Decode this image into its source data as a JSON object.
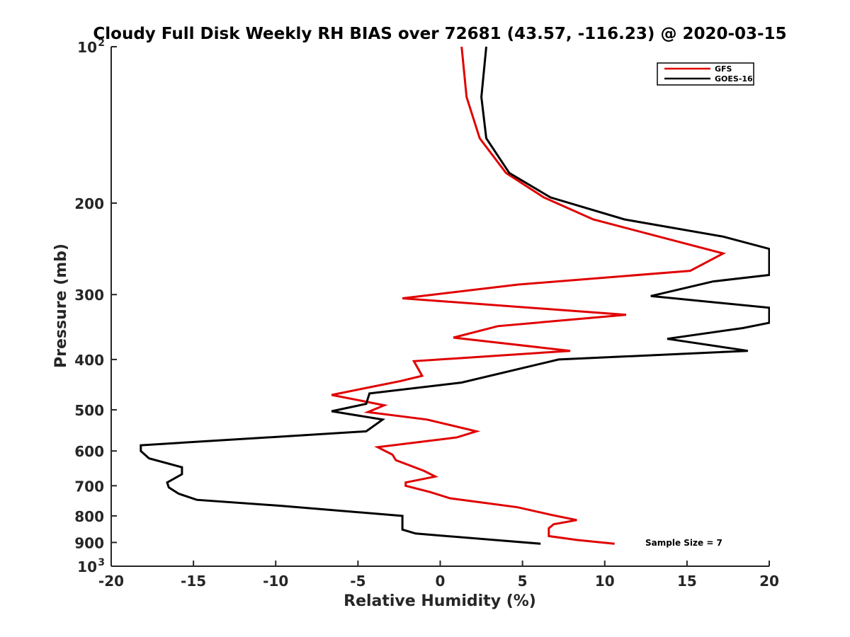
{
  "chart_data": {
    "type": "line",
    "title": "Cloudy Full Disk Weekly RH BIAS over 72681 (43.57, -116.23) @ 2020-03-15",
    "xlabel": "Relative Humidity (%)",
    "ylabel": "Pressure (mb)",
    "xlim": [
      -20,
      20
    ],
    "ylim": [
      100,
      1000
    ],
    "y_scale": "log",
    "y_reversed": true,
    "x_ticks": [
      "-20",
      "-15",
      "-10",
      "-5",
      "0",
      "5",
      "10",
      "15",
      "20"
    ],
    "y_ticks": [
      {
        "value": 100,
        "label": "10",
        "sup": "2"
      },
      {
        "value": 200,
        "label": "200"
      },
      {
        "value": 300,
        "label": "300"
      },
      {
        "value": 400,
        "label": "400"
      },
      {
        "value": 500,
        "label": "500"
      },
      {
        "value": 600,
        "label": "600"
      },
      {
        "value": 700,
        "label": "700"
      },
      {
        "value": 800,
        "label": "800"
      },
      {
        "value": 900,
        "label": "900"
      },
      {
        "value": 1000,
        "label": "10",
        "sup": "3"
      }
    ],
    "legend_position": "top-right",
    "grid": false,
    "annotation": "Sample Size = 7",
    "series": [
      {
        "name": "GFS",
        "color": "#e00000",
        "points": [
          [
            1.3,
            100
          ],
          [
            1.6,
            125
          ],
          [
            2.4,
            150
          ],
          [
            4.0,
            175
          ],
          [
            6.3,
            195
          ],
          [
            9.3,
            215
          ],
          [
            17.2,
            250
          ],
          [
            15.2,
            270
          ],
          [
            4.7,
            287
          ],
          [
            -2.3,
            305
          ],
          [
            11.3,
            328
          ],
          [
            3.5,
            345
          ],
          [
            0.8,
            363
          ],
          [
            7.9,
            385
          ],
          [
            -1.6,
            403
          ],
          [
            -1.1,
            430
          ],
          [
            -2.4,
            440
          ],
          [
            -6.6,
            468
          ],
          [
            -3.4,
            490
          ],
          [
            -4.4,
            505
          ],
          [
            -0.8,
            522
          ],
          [
            2.2,
            550
          ],
          [
            1.0,
            565
          ],
          [
            -3.8,
            590
          ],
          [
            -2.9,
            610
          ],
          [
            -2.7,
            625
          ],
          [
            -1.0,
            655
          ],
          [
            -0.3,
            672
          ],
          [
            -2.1,
            690
          ],
          [
            -2.1,
            700
          ],
          [
            -0.6,
            720
          ],
          [
            0.6,
            740
          ],
          [
            4.7,
            770
          ],
          [
            6.8,
            797
          ],
          [
            8.3,
            815
          ],
          [
            6.9,
            830
          ],
          [
            6.6,
            845
          ],
          [
            6.6,
            875
          ],
          [
            8.3,
            890
          ],
          [
            10.6,
            905
          ]
        ]
      },
      {
        "name": "GOES-16",
        "color": "#000000",
        "points": [
          [
            2.8,
            100
          ],
          [
            2.5,
            125
          ],
          [
            2.8,
            150
          ],
          [
            4.2,
            175
          ],
          [
            6.7,
            195
          ],
          [
            11.2,
            215
          ],
          [
            17.2,
            232
          ],
          [
            20.0,
            245
          ],
          [
            20.0,
            275
          ],
          [
            16.6,
            283
          ],
          [
            12.8,
            302
          ],
          [
            20.0,
            318
          ],
          [
            20.0,
            340
          ],
          [
            18.4,
            348
          ],
          [
            13.8,
            365
          ],
          [
            18.7,
            385
          ],
          [
            7.2,
            400
          ],
          [
            1.3,
            443
          ],
          [
            -4.3,
            465
          ],
          [
            -4.5,
            487
          ],
          [
            -6.6,
            503
          ],
          [
            -3.5,
            522
          ],
          [
            -4.5,
            550
          ],
          [
            -18.2,
            585
          ],
          [
            -18.2,
            600
          ],
          [
            -17.7,
            620
          ],
          [
            -15.7,
            645
          ],
          [
            -15.7,
            665
          ],
          [
            -16.6,
            690
          ],
          [
            -16.5,
            705
          ],
          [
            -15.9,
            725
          ],
          [
            -14.8,
            745
          ],
          [
            -9.7,
            765
          ],
          [
            -2.3,
            800
          ],
          [
            -2.3,
            830
          ],
          [
            -2.3,
            850
          ],
          [
            -1.5,
            865
          ],
          [
            6.1,
            905
          ]
        ]
      }
    ]
  }
}
